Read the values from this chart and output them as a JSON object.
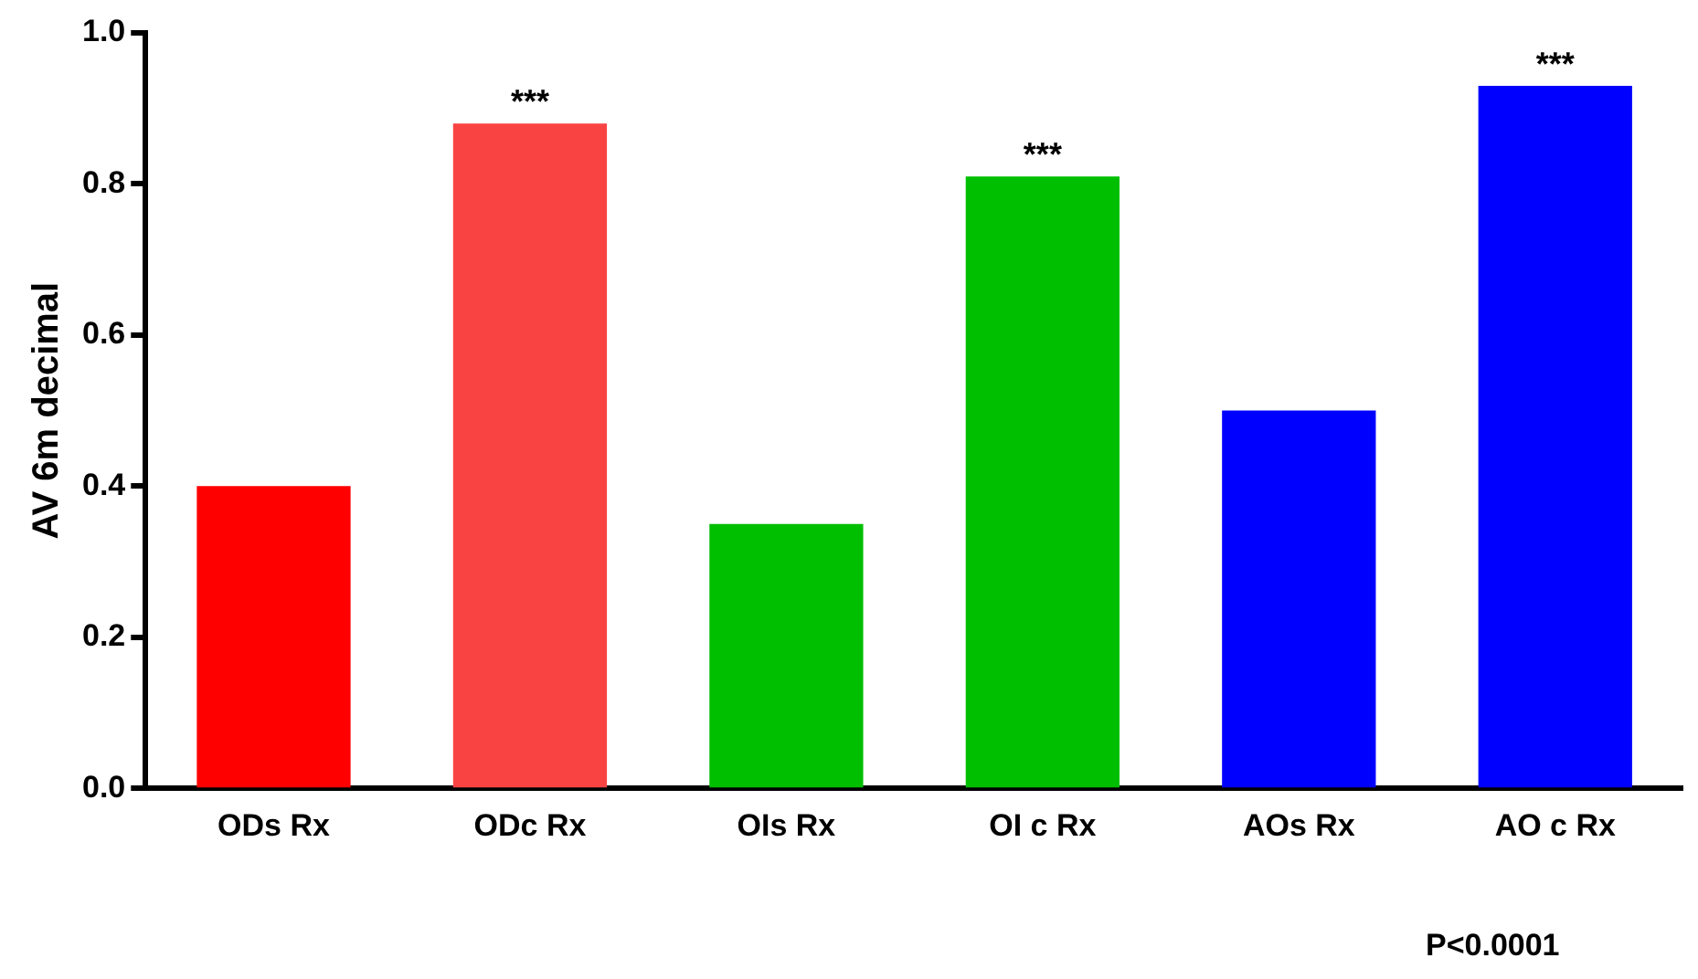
{
  "chart_data": {
    "type": "bar",
    "ylabel": "AV 6m decimal",
    "categories": [
      "ODs Rx",
      "ODc Rx",
      "OIs Rx",
      "OI c Rx",
      "AOs Rx",
      "AO c Rx"
    ],
    "values": [
      0.4,
      0.88,
      0.35,
      0.81,
      0.5,
      0.93
    ],
    "colors": [
      "#ff0000",
      "#f94343",
      "#00be00",
      "#00be00",
      "#0000ff",
      "#0000ff"
    ],
    "ylim": [
      0,
      1.0
    ],
    "yticks": [
      {
        "value": 0,
        "label": "0.0"
      },
      {
        "value": 0.2,
        "label": "0.2"
      },
      {
        "value": 0.4,
        "label": "0.4"
      },
      {
        "value": 0.6,
        "label": "0.6"
      },
      {
        "value": 0.8,
        "label": "0.8"
      },
      {
        "value": 1.0,
        "label": "1.0"
      }
    ],
    "grid": false,
    "legend": false,
    "annotations": [
      {
        "text": "***",
        "x": "ODc Rx",
        "y": 0.88
      },
      {
        "text": "***",
        "x": "OI c Rx",
        "y": 0.81
      },
      {
        "text": "***",
        "x": "AO c Rx",
        "y": 0.93
      },
      "P<0.0001"
    ]
  }
}
